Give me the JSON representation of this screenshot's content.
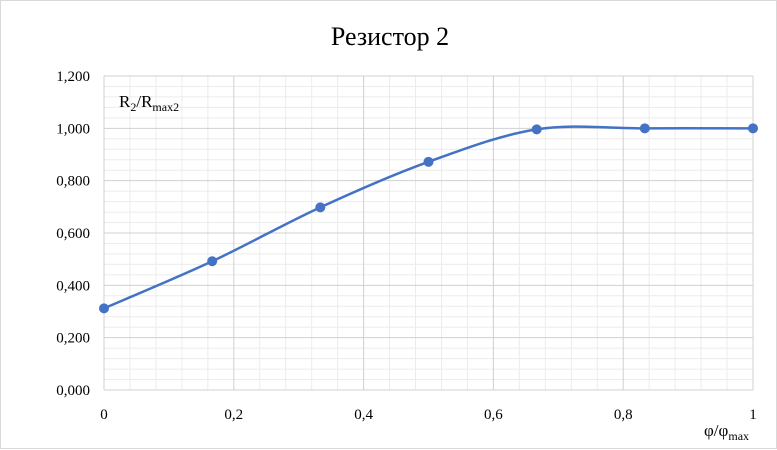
{
  "chart_data": {
    "type": "scatter",
    "title": "Резистор 2",
    "ylabel": {
      "base": "R",
      "sub1": "2",
      "mid": "/R",
      "sub2": "max2"
    },
    "xlabel": {
      "base": "φ/φ",
      "sub": "max"
    },
    "xlim": [
      0,
      1
    ],
    "ylim": [
      0,
      1.2
    ],
    "x_ticks": [
      0,
      0.2,
      0.4,
      0.6,
      0.8,
      1
    ],
    "x_tick_labels": [
      "0",
      "0,2",
      "0,4",
      "0,6",
      "0,8",
      "1"
    ],
    "y_ticks": [
      0,
      0.2,
      0.4,
      0.6,
      0.8,
      1.0,
      1.2
    ],
    "y_tick_labels": [
      "0,000",
      "0,200",
      "0,400",
      "0,600",
      "0,800",
      "1,000",
      "1,200"
    ],
    "x_minor_step": 0.04,
    "y_minor_step": 0.04,
    "grid": true,
    "smooth": true,
    "series": [
      {
        "color": "#4472c4",
        "x": [
          0,
          0.1667,
          0.3333,
          0.5,
          0.6667,
          0.8333,
          1.0
        ],
        "y": [
          0.312,
          0.492,
          0.698,
          0.872,
          0.996,
          1.0,
          1.0
        ]
      }
    ]
  }
}
